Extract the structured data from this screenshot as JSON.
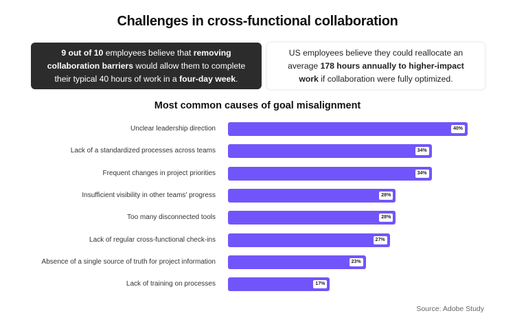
{
  "title": "Challenges in cross-functional collaboration",
  "cards": [
    {
      "segments": [
        {
          "text": "9 out of 10",
          "bold": true
        },
        {
          "text": " employees believe that ",
          "bold": false
        },
        {
          "text": "removing collaboration barriers",
          "bold": true
        },
        {
          "text": " would allow them to complete their typical 40 hours of work in a ",
          "bold": false
        },
        {
          "text": "four-day week",
          "bold": true
        },
        {
          "text": ".",
          "bold": false
        }
      ]
    },
    {
      "segments": [
        {
          "text": "US employees believe they could reallocate an average ",
          "bold": false
        },
        {
          "text": "178 hours annually to higher-impact work",
          "bold": true
        },
        {
          "text": " if collaboration were fully optimized.",
          "bold": false
        }
      ]
    }
  ],
  "chart_data": {
    "type": "bar",
    "orientation": "horizontal",
    "title": "Most common causes of goal misalignment",
    "categories": [
      "Unclear leadership direction",
      "Lack of a standardized processes across teams",
      "Frequent changes in project priorities",
      "Insufficient visibility in other teams' progress",
      "Too many disconnected tools",
      "Lack of regular cross-functional check-ins",
      "Absence of a single source of truth for project information",
      "Lack of training on processes"
    ],
    "values": [
      40,
      34,
      34,
      28,
      28,
      27,
      23,
      17
    ],
    "value_labels": [
      "40%",
      "34%",
      "34%",
      "28%",
      "28%",
      "27%",
      "23%",
      "17%"
    ],
    "unit": "%",
    "bar_color": "#7255fa",
    "grid": false
  },
  "source": "Source: Adobe Study"
}
